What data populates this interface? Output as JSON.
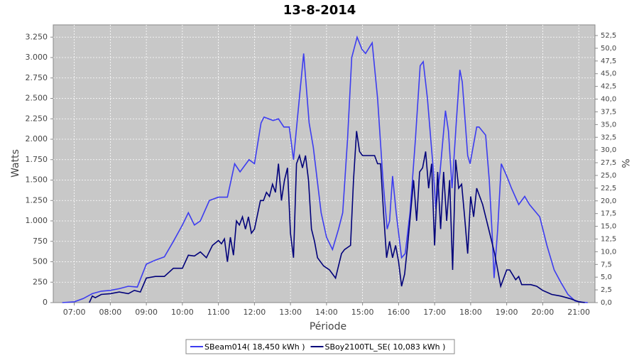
{
  "chart_data": {
    "type": "line",
    "title": "13-8-2014",
    "x_label": "Période",
    "y_label": "Watts",
    "y2_label": "%",
    "grid": true,
    "legend": "bottom",
    "xlim": [
      "06:25",
      "21:27"
    ],
    "xticks": [
      "07:00",
      "08:00",
      "09:00",
      "10:00",
      "11:00",
      "12:00",
      "13:00",
      "14:00",
      "15:00",
      "16:00",
      "17:00",
      "18:00",
      "19:00",
      "20:00",
      "21:00"
    ],
    "ylim": [
      0,
      3400
    ],
    "yticks": [
      0,
      250,
      500,
      750,
      {
        "value": 1000,
        "label": "1.000"
      },
      {
        "value": 1250,
        "label": "1.250"
      },
      {
        "value": 1500,
        "label": "1.500"
      },
      {
        "value": 1750,
        "label": "1.750"
      },
      {
        "value": 2000,
        "label": "2.000"
      },
      {
        "value": 2250,
        "label": "2.250"
      },
      {
        "value": 2500,
        "label": "2.500"
      },
      {
        "value": 2750,
        "label": "2.750"
      },
      {
        "value": 3000,
        "label": "3.000"
      },
      {
        "value": 3250,
        "label": "3.250"
      }
    ],
    "y2lim": [
      0,
      54.6
    ],
    "y2ticks": [
      {
        "value": 0,
        "label": "0,0"
      },
      {
        "value": 2.5,
        "label": "2,5"
      },
      {
        "value": 5,
        "label": "5,0"
      },
      {
        "value": 7.5,
        "label": "7,5"
      },
      {
        "value": 10,
        "label": "10,0"
      },
      {
        "value": 12.5,
        "label": "12,5"
      },
      {
        "value": 15,
        "label": "15,0"
      },
      {
        "value": 17.5,
        "label": "17,5"
      },
      {
        "value": 20,
        "label": "20,0"
      },
      {
        "value": 22.5,
        "label": "22,5"
      },
      {
        "value": 25,
        "label": "25,0"
      },
      {
        "value": 27.5,
        "label": "27,5"
      },
      {
        "value": 30,
        "label": "30,0"
      },
      {
        "value": 32.5,
        "label": "32,5"
      },
      {
        "value": 35,
        "label": "35,0"
      },
      {
        "value": 37.5,
        "label": "37,5"
      },
      {
        "value": 40,
        "label": "40,0"
      },
      {
        "value": 42.5,
        "label": "42,5"
      },
      {
        "value": 45,
        "label": "45,0"
      },
      {
        "value": 47.5,
        "label": "47,5"
      },
      {
        "value": 50,
        "label": "50,0"
      },
      {
        "value": 52.5,
        "label": "52,5"
      }
    ],
    "series": [
      {
        "name": "SBeam014( 18,450 kWh )",
        "color": "#3c3cf0",
        "x": [
          "06:40",
          "07:00",
          "07:15",
          "07:30",
          "07:45",
          "08:00",
          "08:15",
          "08:30",
          "08:45",
          "09:00",
          "09:15",
          "09:30",
          "09:45",
          "10:00",
          "10:10",
          "10:20",
          "10:30",
          "10:45",
          "11:00",
          "11:15",
          "11:27",
          "11:36",
          "11:51",
          "12:00",
          "12:11",
          "12:16",
          "12:31",
          "12:40",
          "12:49",
          "12:58",
          "13:05",
          "13:16",
          "13:22",
          "13:31",
          "13:38",
          "13:51",
          "14:00",
          "14:10",
          "14:20",
          "14:27",
          "14:35",
          "14:42",
          "14:51",
          "14:59",
          "15:05",
          "15:16",
          "15:25",
          "15:34",
          "15:41",
          "15:45",
          "15:50",
          "15:56",
          "16:05",
          "16:11",
          "16:19",
          "16:28",
          "16:36",
          "16:41",
          "16:48",
          "16:58",
          "17:02",
          "17:09",
          "17:18",
          "17:23",
          "17:29",
          "17:36",
          "17:42",
          "17:46",
          "17:55",
          "17:59",
          "18:10",
          "18:14",
          "18:25",
          "18:31",
          "18:36",
          "18:39",
          "18:45",
          "18:51",
          "19:00",
          "19:08",
          "19:20",
          "19:30",
          "19:38",
          "19:55",
          "20:07",
          "20:19",
          "20:30",
          "20:42",
          "20:54",
          "21:06",
          "21:15"
        ],
        "values": [
          0,
          10,
          50,
          110,
          140,
          150,
          170,
          200,
          190,
          470,
          520,
          560,
          750,
          950,
          1100,
          950,
          1000,
          1250,
          1290,
          1290,
          1700,
          1600,
          1750,
          1700,
          2200,
          2270,
          2230,
          2250,
          2150,
          2150,
          1750,
          2600,
          3050,
          2200,
          1900,
          1100,
          800,
          650,
          900,
          1100,
          2000,
          3000,
          3250,
          3100,
          3050,
          3180,
          2500,
          1500,
          900,
          1000,
          1550,
          1100,
          550,
          600,
          1100,
          2000,
          2900,
          2950,
          2500,
          1600,
          1150,
          1600,
          2350,
          2100,
          1400,
          2200,
          2850,
          2700,
          1800,
          1700,
          2150,
          2150,
          2050,
          1500,
          800,
          300,
          900,
          1700,
          1550,
          1400,
          1200,
          1300,
          1200,
          1050,
          700,
          400,
          250,
          100,
          20,
          5,
          0
        ]
      },
      {
        "name": "SBoy2100TL_SE( 10,083 kWh )",
        "color": "#00007a",
        "x": [
          "07:25",
          "07:30",
          "07:35",
          "07:45",
          "08:00",
          "08:15",
          "08:30",
          "08:40",
          "08:50",
          "09:00",
          "09:15",
          "09:30",
          "09:45",
          "10:00",
          "10:10",
          "10:20",
          "10:30",
          "10:40",
          "10:50",
          "11:00",
          "11:05",
          "11:10",
          "11:15",
          "11:20",
          "11:25",
          "11:30",
          "11:35",
          "11:40",
          "11:45",
          "11:50",
          "11:55",
          "12:00",
          "12:10",
          "12:15",
          "12:20",
          "12:25",
          "12:30",
          "12:35",
          "12:40",
          "12:45",
          "12:50",
          "12:55",
          "13:00",
          "13:05",
          "13:10",
          "13:15",
          "13:20",
          "13:25",
          "13:30",
          "13:35",
          "13:40",
          "13:45",
          "13:55",
          "14:05",
          "14:15",
          "14:25",
          "14:30",
          "14:40",
          "14:45",
          "14:50",
          "14:55",
          "15:00",
          "15:10",
          "15:20",
          "15:25",
          "15:30",
          "15:35",
          "15:40",
          "15:45",
          "15:50",
          "15:55",
          "16:00",
          "16:05",
          "16:10",
          "16:15",
          "16:20",
          "16:25",
          "16:30",
          "16:35",
          "16:40",
          "16:45",
          "16:50",
          "16:55",
          "17:00",
          "17:05",
          "17:10",
          "17:15",
          "17:20",
          "17:25",
          "17:30",
          "17:35",
          "17:40",
          "17:45",
          "17:50",
          "17:55",
          "18:00",
          "18:05",
          "18:10",
          "18:20",
          "18:30",
          "18:40",
          "18:50",
          "19:00",
          "19:05",
          "19:15",
          "19:20",
          "19:25",
          "19:40",
          "19:50",
          "20:00",
          "20:15",
          "20:30",
          "20:45",
          "21:00",
          "21:10"
        ],
        "values": [
          0,
          80,
          60,
          100,
          110,
          130,
          110,
          150,
          130,
          300,
          320,
          320,
          420,
          420,
          580,
          570,
          620,
          550,
          700,
          760,
          720,
          780,
          500,
          800,
          580,
          1000,
          950,
          1050,
          900,
          1050,
          850,
          900,
          1250,
          1250,
          1350,
          1300,
          1450,
          1350,
          1700,
          1250,
          1500,
          1650,
          850,
          550,
          1700,
          1800,
          1650,
          1800,
          1500,
          900,
          750,
          550,
          450,
          400,
          300,
          600,
          650,
          700,
          1500,
          2100,
          1850,
          1800,
          1800,
          1800,
          1700,
          1700,
          1100,
          550,
          750,
          550,
          700,
          500,
          200,
          350,
          700,
          1100,
          1500,
          1000,
          1600,
          1650,
          1850,
          1400,
          1700,
          700,
          1600,
          900,
          1600,
          1000,
          1500,
          400,
          1750,
          1400,
          1450,
          1050,
          600,
          1300,
          1050,
          1400,
          1200,
          900,
          600,
          200,
          400,
          400,
          280,
          320,
          220,
          220,
          200,
          150,
          100,
          80,
          50,
          10,
          0
        ]
      }
    ]
  }
}
